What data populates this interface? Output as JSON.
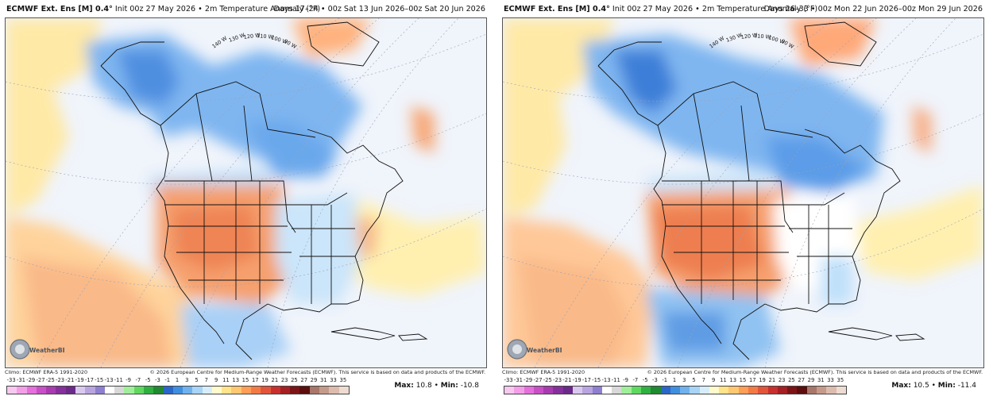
{
  "panels": [
    {
      "title_bold": "ECMWF Ext. Ens [M] 0.4°",
      "title_rest": "Init 00z 27 May 2026 • 2m Temperature Anomaly (°F)",
      "days": "Days 17–24 • 00z Sat 13 Jun 2026–00z Sat 20 Jun 2026",
      "climo": "Climo: ECMWF ERA-5 1991-2020",
      "copyright": "© 2026 European Centre for Medium-Range Weather Forecasts (ECMWF). This service is based on data and products of the ECMWF.",
      "max_label": "Max:",
      "max_value": "10.8",
      "min_label": "Min:",
      "min_value": "-10.8"
    },
    {
      "title_bold": "ECMWF Ext. Ens [M] 0.4°",
      "title_rest": "Init 00z 27 May 2026 • 2m Temperature Anomaly (°F)",
      "days": "Days 26–33 • 00z Mon 22 Jun 2026–00z Mon 29 Jun 2026",
      "climo": "Climo: ECMWF ERA-5 1991-2020",
      "copyright": "© 2026 European Centre for Medium-Range Weather Forecasts (ECMWF). This service is based on data and products of the ECMWF.",
      "max_label": "Max:",
      "max_value": "10.5",
      "min_label": "Min:",
      "min_value": "-11.4"
    }
  ],
  "colorbar_ticks": [
    "-33",
    "-31",
    "-29",
    "-27",
    "-25",
    "-23",
    "-21",
    "-19",
    "-17",
    "-15",
    "-13",
    "-11",
    "-9",
    "-7",
    "-5",
    "-3",
    "-1",
    "1",
    "3",
    "5",
    "7",
    "9",
    "11",
    "13",
    "15",
    "17",
    "19",
    "21",
    "23",
    "25",
    "27",
    "29",
    "31",
    "33",
    "35"
  ],
  "colorbar_colors": [
    "#f7c8f0",
    "#f39fe8",
    "#e56fdb",
    "#c94fc7",
    "#a93bb1",
    "#86309c",
    "#6b2a8a",
    "#d9c9ef",
    "#b8a5e0",
    "#8e7fd0",
    "#ffffff",
    "#d8d8d8",
    "#9fef9a",
    "#5fd860",
    "#2fb040",
    "#1f8a30",
    "#2b67c8",
    "#3f8fe0",
    "#6fb2ee",
    "#a7d4f7",
    "#d8edfb",
    "#fffbcc",
    "#ffe48a",
    "#ffc770",
    "#ff9e57",
    "#f47a45",
    "#e2553a",
    "#c9302d",
    "#a61f22",
    "#7c1416",
    "#5c0d0d",
    "#a8776a",
    "#c59a8a",
    "#dcbcae",
    "#eedbd2"
  ],
  "logo_text": "WeatherBELL",
  "map_labels": [
    "140 W",
    "130 W",
    "120 W",
    "110 W",
    "100 W",
    "90 W"
  ]
}
